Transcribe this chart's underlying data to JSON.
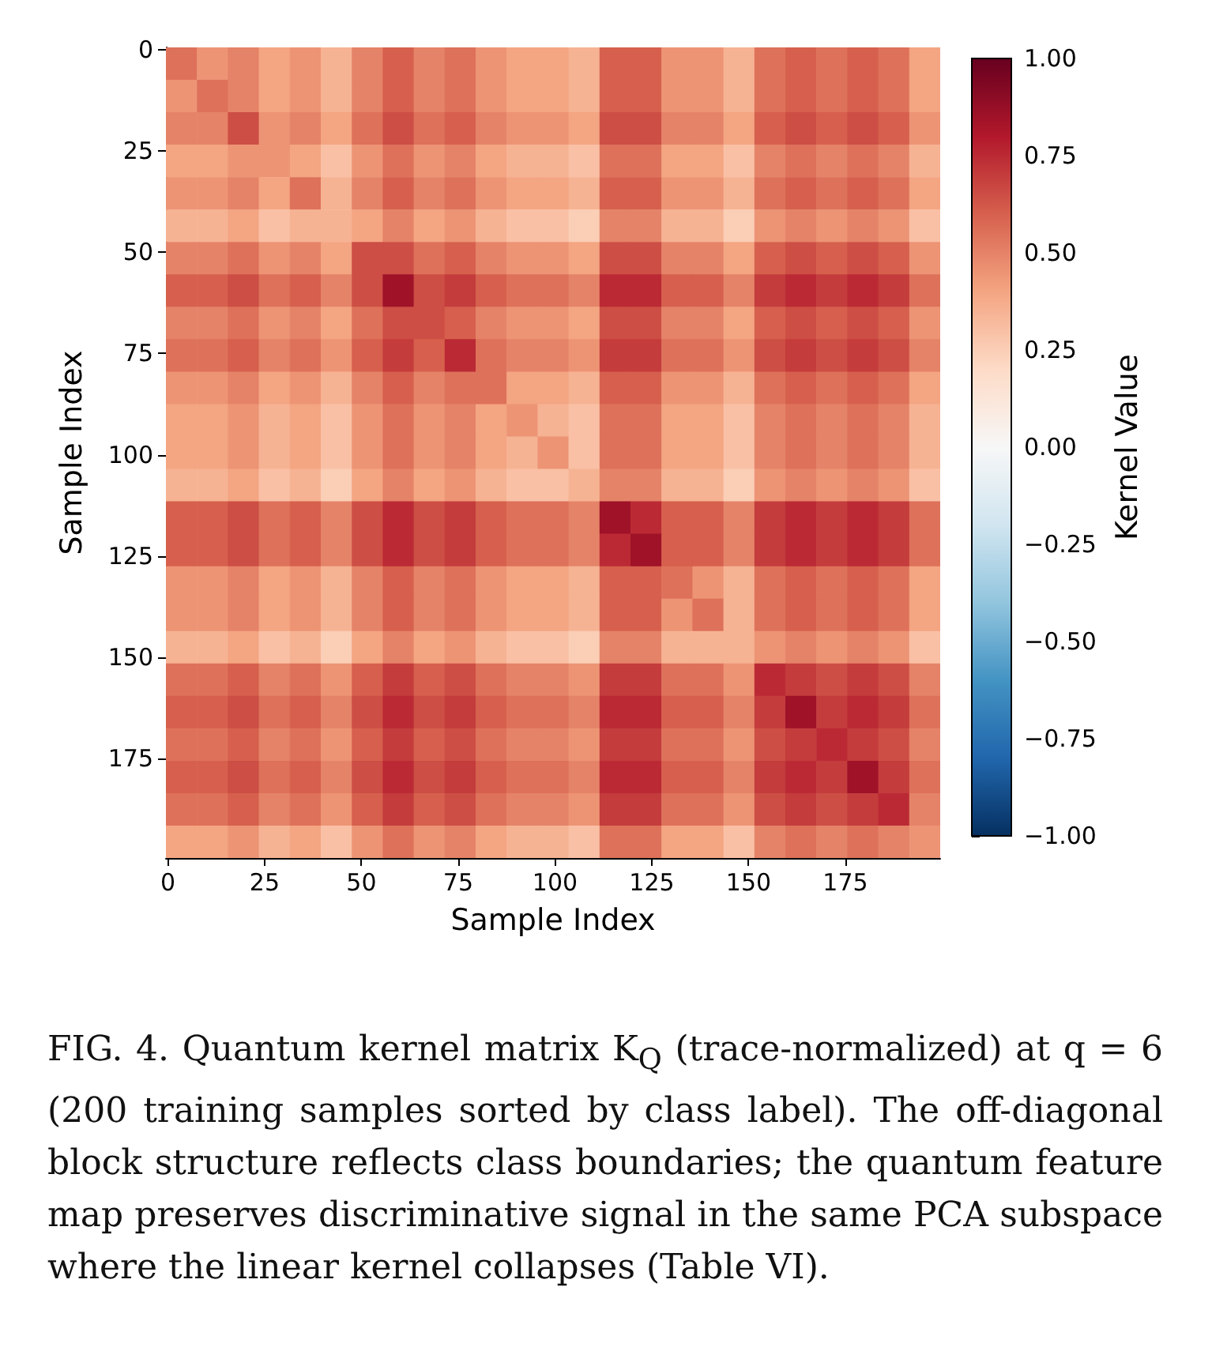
{
  "chart_data": {
    "type": "heatmap",
    "xlabel": "Sample Index",
    "ylabel": "Sample Index",
    "clabel": "Kernel Value",
    "annotations": [
      "FIG. 4. Quantum kernel matrix K$_{Q}$ (trace-normalized) at q = 6 (200 training samples sorted by class label). The off-diagonal block structure reflects class boundaries; the quantum feature map preserves discriminative signal in the same PCA subspace where the linear kernel collapses (Table VI)."
    ],
    "x": [
      3.5,
      11.5,
      19.5,
      27.5,
      35.5,
      43.5,
      51.5,
      59.5,
      67.5,
      75.5,
      83.5,
      91.5,
      99.5,
      107.5,
      115.5,
      123.5,
      131.5,
      139.5,
      147.5,
      155.5,
      163.5,
      171.5,
      179.5,
      187.5,
      195.5
    ],
    "xlim": [
      -0.5,
      199.5
    ],
    "ylim": [
      199.5,
      -0.5
    ],
    "xticks": [
      0,
      25,
      50,
      75,
      100,
      125,
      150,
      175
    ],
    "yticks": [
      0,
      25,
      50,
      75,
      100,
      125,
      150,
      175
    ],
    "clim": [
      -1,
      1
    ],
    "cticks": [
      {
        "value": -1,
        "label": "−1.00"
      },
      {
        "value": -0.75,
        "label": "−0.75"
      },
      {
        "value": -0.5,
        "label": "−0.50"
      },
      {
        "value": -0.25,
        "label": "−0.25"
      },
      {
        "value": 0,
        "label": "0.00"
      },
      {
        "value": 0.25,
        "label": "0.25"
      },
      {
        "value": 0.5,
        "label": "0.50"
      },
      {
        "value": 0.75,
        "label": "0.75"
      },
      {
        "value": 1,
        "label": "1.00"
      }
    ],
    "cells": [
      [
        0.55,
        0.45,
        0.5,
        0.4,
        0.45,
        0.35,
        0.5,
        0.6,
        0.5,
        0.55,
        0.45,
        0.4,
        0.4,
        0.35,
        0.6,
        0.6,
        0.45,
        0.45,
        0.35,
        0.55,
        0.6,
        0.55,
        0.6,
        0.55,
        0.4
      ],
      [
        0.45,
        0.55,
        0.5,
        0.4,
        0.45,
        0.35,
        0.5,
        0.6,
        0.5,
        0.55,
        0.45,
        0.4,
        0.4,
        0.35,
        0.6,
        0.6,
        0.45,
        0.45,
        0.35,
        0.55,
        0.6,
        0.55,
        0.6,
        0.55,
        0.4
      ],
      [
        0.5,
        0.5,
        0.65,
        0.45,
        0.5,
        0.4,
        0.55,
        0.65,
        0.55,
        0.6,
        0.5,
        0.45,
        0.45,
        0.4,
        0.65,
        0.65,
        0.5,
        0.5,
        0.4,
        0.6,
        0.65,
        0.6,
        0.65,
        0.6,
        0.45
      ],
      [
        0.4,
        0.4,
        0.45,
        0.45,
        0.4,
        0.3,
        0.45,
        0.55,
        0.45,
        0.5,
        0.4,
        0.35,
        0.35,
        0.3,
        0.55,
        0.55,
        0.4,
        0.4,
        0.3,
        0.5,
        0.55,
        0.5,
        0.55,
        0.5,
        0.35
      ],
      [
        0.45,
        0.45,
        0.5,
        0.4,
        0.55,
        0.35,
        0.5,
        0.6,
        0.5,
        0.55,
        0.45,
        0.4,
        0.4,
        0.35,
        0.6,
        0.6,
        0.45,
        0.45,
        0.35,
        0.55,
        0.6,
        0.55,
        0.6,
        0.55,
        0.4
      ],
      [
        0.35,
        0.35,
        0.4,
        0.3,
        0.35,
        0.35,
        0.4,
        0.5,
        0.4,
        0.45,
        0.35,
        0.3,
        0.3,
        0.25,
        0.5,
        0.5,
        0.35,
        0.35,
        0.25,
        0.45,
        0.5,
        0.45,
        0.5,
        0.45,
        0.3
      ],
      [
        0.5,
        0.5,
        0.55,
        0.45,
        0.5,
        0.4,
        0.65,
        0.65,
        0.55,
        0.6,
        0.5,
        0.45,
        0.45,
        0.4,
        0.65,
        0.65,
        0.5,
        0.5,
        0.4,
        0.6,
        0.65,
        0.6,
        0.65,
        0.6,
        0.45
      ],
      [
        0.6,
        0.6,
        0.65,
        0.55,
        0.6,
        0.5,
        0.65,
        0.85,
        0.65,
        0.7,
        0.6,
        0.55,
        0.55,
        0.5,
        0.75,
        0.75,
        0.6,
        0.6,
        0.5,
        0.7,
        0.75,
        0.7,
        0.75,
        0.7,
        0.55
      ],
      [
        0.5,
        0.5,
        0.55,
        0.45,
        0.5,
        0.4,
        0.55,
        0.65,
        0.65,
        0.6,
        0.5,
        0.45,
        0.45,
        0.4,
        0.65,
        0.65,
        0.5,
        0.5,
        0.4,
        0.6,
        0.65,
        0.6,
        0.65,
        0.6,
        0.45
      ],
      [
        0.55,
        0.55,
        0.6,
        0.5,
        0.55,
        0.45,
        0.6,
        0.7,
        0.6,
        0.75,
        0.55,
        0.5,
        0.5,
        0.45,
        0.7,
        0.7,
        0.55,
        0.55,
        0.45,
        0.65,
        0.7,
        0.65,
        0.7,
        0.65,
        0.5
      ],
      [
        0.45,
        0.45,
        0.5,
        0.4,
        0.45,
        0.35,
        0.5,
        0.6,
        0.5,
        0.55,
        0.55,
        0.4,
        0.4,
        0.35,
        0.6,
        0.6,
        0.45,
        0.45,
        0.35,
        0.55,
        0.6,
        0.55,
        0.6,
        0.55,
        0.4
      ],
      [
        0.4,
        0.4,
        0.45,
        0.35,
        0.4,
        0.3,
        0.45,
        0.55,
        0.45,
        0.5,
        0.4,
        0.45,
        0.35,
        0.3,
        0.55,
        0.55,
        0.4,
        0.4,
        0.3,
        0.5,
        0.55,
        0.5,
        0.55,
        0.5,
        0.35
      ],
      [
        0.4,
        0.4,
        0.45,
        0.35,
        0.4,
        0.3,
        0.45,
        0.55,
        0.45,
        0.5,
        0.4,
        0.35,
        0.45,
        0.3,
        0.55,
        0.55,
        0.4,
        0.4,
        0.3,
        0.5,
        0.55,
        0.5,
        0.55,
        0.5,
        0.35
      ],
      [
        0.35,
        0.35,
        0.4,
        0.3,
        0.35,
        0.25,
        0.4,
        0.5,
        0.4,
        0.45,
        0.35,
        0.3,
        0.3,
        0.35,
        0.5,
        0.5,
        0.35,
        0.35,
        0.25,
        0.45,
        0.5,
        0.45,
        0.5,
        0.45,
        0.3
      ],
      [
        0.6,
        0.6,
        0.65,
        0.55,
        0.6,
        0.5,
        0.65,
        0.75,
        0.65,
        0.7,
        0.6,
        0.55,
        0.55,
        0.5,
        0.85,
        0.75,
        0.6,
        0.6,
        0.5,
        0.7,
        0.75,
        0.7,
        0.75,
        0.7,
        0.55
      ],
      [
        0.6,
        0.6,
        0.65,
        0.55,
        0.6,
        0.5,
        0.65,
        0.75,
        0.65,
        0.7,
        0.6,
        0.55,
        0.55,
        0.5,
        0.75,
        0.85,
        0.6,
        0.6,
        0.5,
        0.7,
        0.75,
        0.7,
        0.75,
        0.7,
        0.55
      ],
      [
        0.45,
        0.45,
        0.5,
        0.4,
        0.45,
        0.35,
        0.5,
        0.6,
        0.5,
        0.55,
        0.45,
        0.4,
        0.4,
        0.35,
        0.6,
        0.6,
        0.55,
        0.45,
        0.35,
        0.55,
        0.6,
        0.55,
        0.6,
        0.55,
        0.4
      ],
      [
        0.45,
        0.45,
        0.5,
        0.4,
        0.45,
        0.35,
        0.5,
        0.6,
        0.5,
        0.55,
        0.45,
        0.4,
        0.4,
        0.35,
        0.6,
        0.6,
        0.45,
        0.55,
        0.35,
        0.55,
        0.6,
        0.55,
        0.6,
        0.55,
        0.4
      ],
      [
        0.35,
        0.35,
        0.4,
        0.3,
        0.35,
        0.25,
        0.4,
        0.5,
        0.4,
        0.45,
        0.35,
        0.3,
        0.3,
        0.25,
        0.5,
        0.5,
        0.35,
        0.35,
        0.35,
        0.45,
        0.5,
        0.45,
        0.5,
        0.45,
        0.3
      ],
      [
        0.55,
        0.55,
        0.6,
        0.5,
        0.55,
        0.45,
        0.6,
        0.7,
        0.6,
        0.65,
        0.55,
        0.5,
        0.5,
        0.45,
        0.7,
        0.7,
        0.55,
        0.55,
        0.45,
        0.75,
        0.7,
        0.65,
        0.7,
        0.65,
        0.5
      ],
      [
        0.6,
        0.6,
        0.65,
        0.55,
        0.6,
        0.5,
        0.65,
        0.75,
        0.65,
        0.7,
        0.6,
        0.55,
        0.55,
        0.5,
        0.75,
        0.75,
        0.6,
        0.6,
        0.5,
        0.7,
        0.85,
        0.7,
        0.75,
        0.7,
        0.55
      ],
      [
        0.55,
        0.55,
        0.6,
        0.5,
        0.55,
        0.45,
        0.6,
        0.7,
        0.6,
        0.65,
        0.55,
        0.5,
        0.5,
        0.45,
        0.7,
        0.7,
        0.55,
        0.55,
        0.45,
        0.65,
        0.7,
        0.75,
        0.7,
        0.65,
        0.5
      ],
      [
        0.6,
        0.6,
        0.65,
        0.55,
        0.6,
        0.5,
        0.65,
        0.75,
        0.65,
        0.7,
        0.6,
        0.55,
        0.55,
        0.5,
        0.75,
        0.75,
        0.6,
        0.6,
        0.5,
        0.7,
        0.75,
        0.7,
        0.85,
        0.7,
        0.55
      ],
      [
        0.55,
        0.55,
        0.6,
        0.5,
        0.55,
        0.45,
        0.6,
        0.7,
        0.6,
        0.65,
        0.55,
        0.5,
        0.5,
        0.45,
        0.7,
        0.7,
        0.55,
        0.55,
        0.45,
        0.65,
        0.7,
        0.65,
        0.7,
        0.75,
        0.5
      ],
      [
        0.4,
        0.4,
        0.45,
        0.35,
        0.4,
        0.3,
        0.45,
        0.55,
        0.45,
        0.5,
        0.4,
        0.35,
        0.35,
        0.3,
        0.55,
        0.55,
        0.4,
        0.4,
        0.3,
        0.5,
        0.55,
        0.5,
        0.55,
        0.5,
        0.45
      ]
    ]
  }
}
